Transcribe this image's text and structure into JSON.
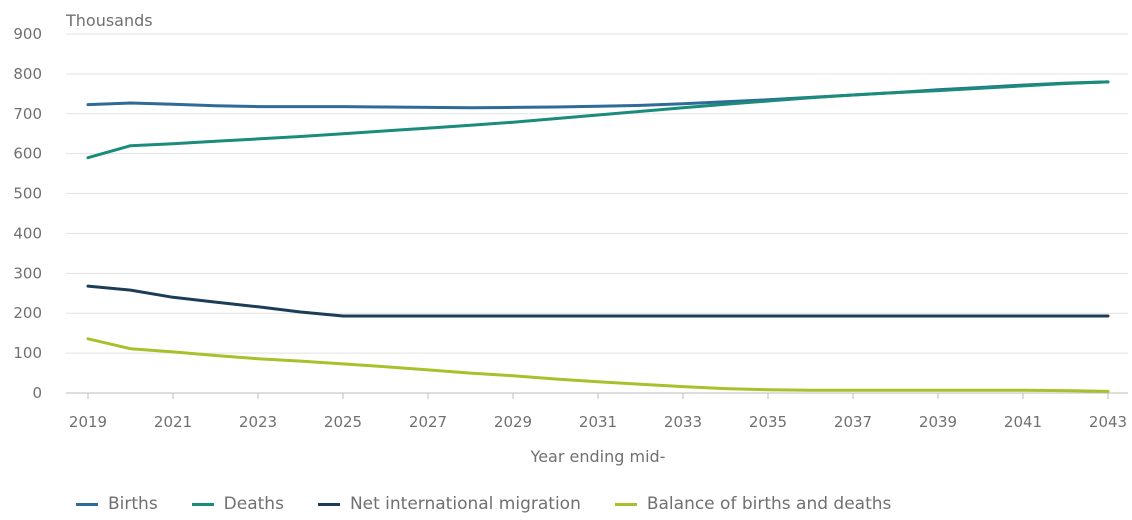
{
  "chart_data": {
    "type": "line",
    "unit_label": "Thousands",
    "xlabel": "Year ending mid-",
    "ylim": [
      0,
      900
    ],
    "yticks": [
      0,
      100,
      200,
      300,
      400,
      500,
      600,
      700,
      800,
      900
    ],
    "xticks": [
      2019,
      2021,
      2023,
      2025,
      2027,
      2029,
      2031,
      2033,
      2035,
      2037,
      2039,
      2041,
      2043
    ],
    "x": [
      2019,
      2020,
      2021,
      2022,
      2023,
      2024,
      2025,
      2026,
      2027,
      2028,
      2029,
      2030,
      2031,
      2032,
      2033,
      2034,
      2035,
      2036,
      2037,
      2038,
      2039,
      2040,
      2041,
      2042,
      2043
    ],
    "series": [
      {
        "name": "Births",
        "color": "#2e6b99",
        "values": [
          723,
          727,
          724,
          720,
          718,
          718,
          718,
          717,
          716,
          715,
          716,
          717,
          719,
          721,
          725,
          730,
          735,
          741,
          747,
          753,
          760,
          766,
          772,
          777,
          780
        ]
      },
      {
        "name": "Deaths",
        "color": "#1a8c7a",
        "values": [
          590,
          620,
          625,
          631,
          637,
          643,
          650,
          657,
          664,
          671,
          679,
          688,
          697,
          706,
          715,
          724,
          732,
          740,
          747,
          753,
          758,
          764,
          770,
          776,
          780
        ]
      },
      {
        "name": "Net international migration",
        "color": "#1d3d56",
        "values": [
          268,
          258,
          240,
          228,
          216,
          203,
          193,
          193,
          193,
          193,
          193,
          193,
          193,
          193,
          193,
          193,
          193,
          193,
          193,
          193,
          193,
          193,
          193,
          193,
          193
        ]
      },
      {
        "name": "Balance of births and deaths",
        "color": "#a7c12c",
        "values": [
          136,
          111,
          103,
          94,
          86,
          80,
          73,
          66,
          58,
          50,
          43,
          35,
          28,
          22,
          16,
          11,
          8,
          7,
          7,
          7,
          7,
          7,
          7,
          6,
          4
        ]
      }
    ],
    "grid": true,
    "legend_position": "bottom-left"
  }
}
